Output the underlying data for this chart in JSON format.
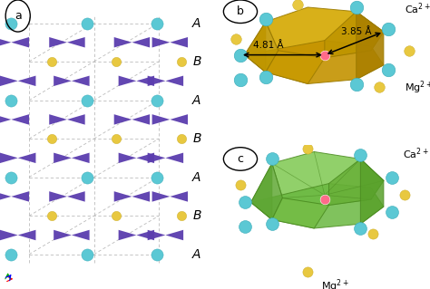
{
  "figure_width": 4.74,
  "figure_height": 3.19,
  "background_color": "#ffffff",
  "panel_a": {
    "label": "a",
    "ca_color": "#5BC8D4",
    "mg_color": "#E8C840",
    "co3_color": "#5B3DAE",
    "grid_color": "#BBBBBB",
    "layer_labels": [
      "A",
      "B",
      "A",
      "B",
      "A",
      "B",
      "A"
    ],
    "layer_label_color": "#000000"
  },
  "panel_b": {
    "label": "b",
    "polyhedra_color": "#D4A800",
    "ca_color": "#5BC8D4",
    "mg_color": "#E8C840",
    "center_color": "#FF6B8A",
    "dist1_label": "3.85 Å",
    "dist2_label": "4.81 Å",
    "ca_label": "Ca$^{2+}$",
    "mg_label": "Mg$^{2+}$"
  },
  "panel_c": {
    "label": "c",
    "polyhedra_color": "#7EC850",
    "ca_color": "#5BC8D4",
    "mg_color": "#E8C840",
    "center_color": "#FF6B8A",
    "ca_label": "Ca$^{2+}$",
    "mg_label": "Mg$^{2+}$"
  }
}
